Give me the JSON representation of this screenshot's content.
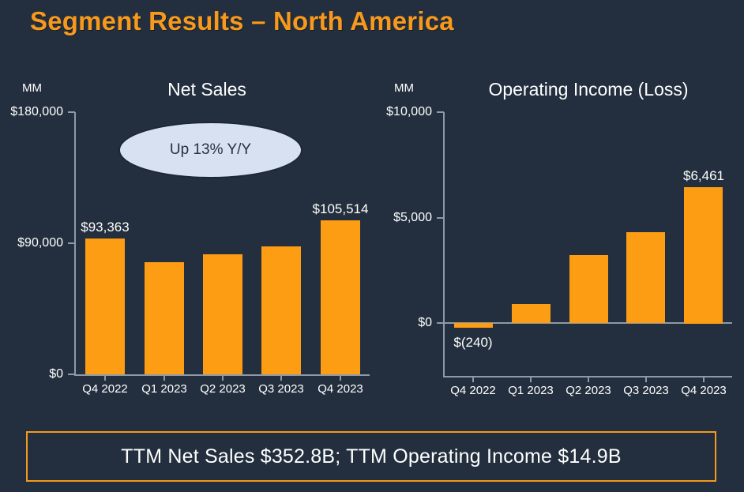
{
  "page": {
    "title": "Segment Results – North America",
    "background": "#232F3E",
    "accent": "#F7991C",
    "text_color": "#FFFFFF"
  },
  "chart_data": [
    {
      "type": "bar",
      "title": "Net Sales",
      "unit": "MM",
      "annotation": "Up 13% Y/Y",
      "annotation_fill": "#D8E1F1",
      "categories": [
        "Q4 2022",
        "Q1 2023",
        "Q2 2023",
        "Q3 2023",
        "Q4 2023"
      ],
      "values": [
        93363,
        76881,
        82546,
        87887,
        105514
      ],
      "bar_labels": [
        "$93,363",
        null,
        null,
        null,
        "$105,514"
      ],
      "ylim": [
        0,
        180000
      ],
      "yticks": [
        {
          "value": 0,
          "label": "$0"
        },
        {
          "value": 90000,
          "label": "$90,000"
        },
        {
          "value": 180000,
          "label": "$180,000"
        }
      ],
      "bar_color": "#FC9D13",
      "grid": false,
      "legend": "none"
    },
    {
      "type": "bar",
      "title": "Operating Income (Loss)",
      "unit": "MM",
      "categories": [
        "Q4 2022",
        "Q1 2023",
        "Q2 2023",
        "Q3 2023",
        "Q4 2023"
      ],
      "values": [
        -240,
        898,
        3211,
        4307,
        6461
      ],
      "bar_labels": [
        "$(240)",
        null,
        null,
        null,
        "$6,461"
      ],
      "ylim": [
        -2500,
        10000
      ],
      "yticks": [
        {
          "value": 0,
          "label": "$0"
        },
        {
          "value": 5000,
          "label": "$5,000"
        },
        {
          "value": 10000,
          "label": "$10,000"
        }
      ],
      "bar_color": "#FC9D13",
      "zero_line": true,
      "grid": false,
      "legend": "none"
    }
  ],
  "footer": {
    "text": "TTM Net Sales $352.8B; TTM Operating Income $14.9B"
  }
}
